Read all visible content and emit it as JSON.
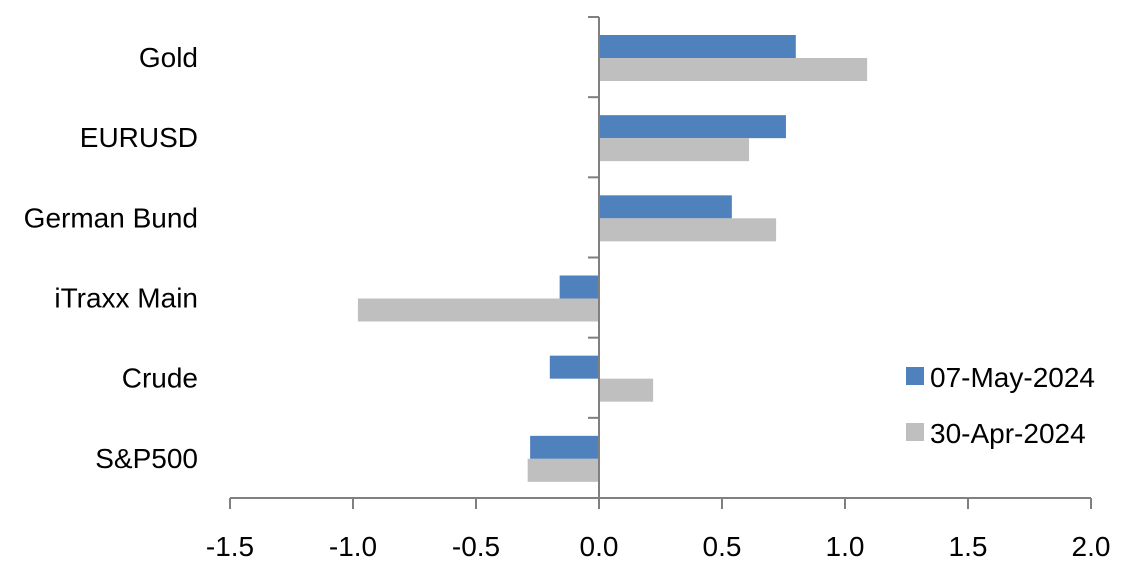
{
  "chart_data": {
    "type": "bar",
    "orientation": "horizontal",
    "categories": [
      "Gold",
      "EURUSD",
      "German Bund",
      "iTraxx Main",
      "Crude",
      "S&P500"
    ],
    "series": [
      {
        "name": "07-May-2024",
        "color": "#4f81bd",
        "values": [
          0.8,
          0.76,
          0.54,
          -0.16,
          -0.2,
          -0.28
        ]
      },
      {
        "name": "30-Apr-2024",
        "color": "#bfbfbf",
        "values": [
          1.09,
          0.61,
          0.72,
          -0.98,
          0.22,
          -0.29
        ]
      }
    ],
    "xlim": [
      -1.5,
      2.0
    ],
    "xticks": [
      "-1.5",
      "-1.0",
      "-0.5",
      "0.0",
      "0.5",
      "1.0",
      "1.5",
      "2.0"
    ],
    "legend": "right",
    "grid": false,
    "title": "",
    "xlabel": "",
    "ylabel": ""
  }
}
